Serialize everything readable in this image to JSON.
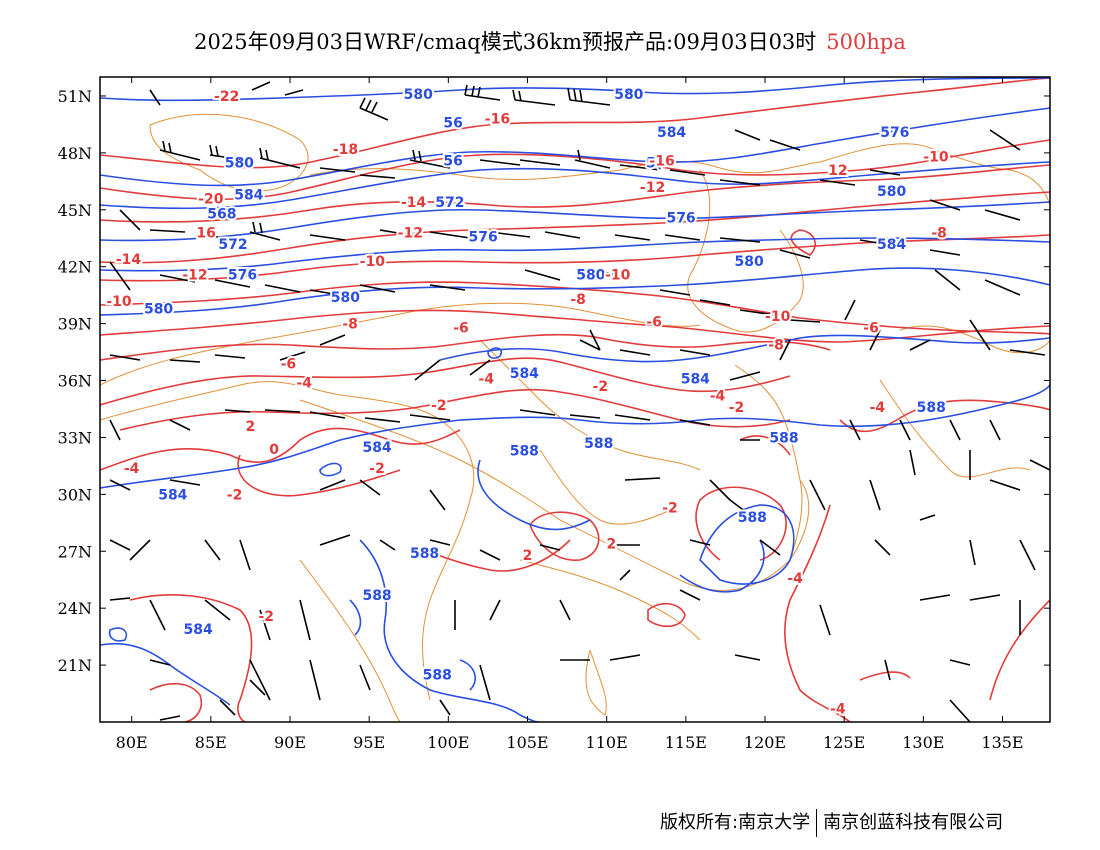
{
  "title": {
    "text": "2025年09月03日WRF/cmaq模式36km预报产品:09月03日03时",
    "level": "500hpa"
  },
  "map": {
    "lon_range": [
      78,
      138
    ],
    "lat_range": [
      18,
      52
    ],
    "lat_ticks": [
      "51N",
      "48N",
      "45N",
      "42N",
      "39N",
      "36N",
      "33N",
      "30N",
      "27N",
      "24N",
      "21N"
    ],
    "lat_values": [
      51,
      48,
      45,
      42,
      39,
      36,
      33,
      30,
      27,
      24,
      21
    ],
    "lon_ticks": [
      "80E",
      "85E",
      "90E",
      "95E",
      "100E",
      "105E",
      "110E",
      "115E",
      "120E",
      "125E",
      "130E",
      "135E"
    ],
    "lon_values": [
      80,
      85,
      90,
      95,
      100,
      105,
      110,
      115,
      120,
      125,
      130,
      135
    ],
    "colors": {
      "height_contour": "#2a4fe0",
      "temperature_contour": "#e23b3b",
      "boundary": "#e0913a",
      "wind_barb": "#000000"
    },
    "height_labels": [
      {
        "text": "580",
        "lon": 98.1,
        "lat": 51.1
      },
      {
        "text": "580",
        "lon": 111.4,
        "lat": 51.1
      },
      {
        "text": "56",
        "lon": 100.3,
        "lat": 49.6
      },
      {
        "text": "584",
        "lon": 114.1,
        "lat": 49.1
      },
      {
        "text": "576",
        "lon": 128.2,
        "lat": 49.1
      },
      {
        "text": "580",
        "lon": 86.8,
        "lat": 47.5
      },
      {
        "text": "56",
        "lon": 100.3,
        "lat": 47.6
      },
      {
        "text": "5(",
        "lon": 113.0,
        "lat": 47.5
      },
      {
        "text": "584",
        "lon": 87.4,
        "lat": 45.8
      },
      {
        "text": "572",
        "lon": 100.1,
        "lat": 45.4
      },
      {
        "text": "580",
        "lon": 128.0,
        "lat": 46.0
      },
      {
        "text": "568",
        "lon": 85.7,
        "lat": 44.8
      },
      {
        "text": "576",
        "lon": 114.7,
        "lat": 44.6
      },
      {
        "text": "572",
        "lon": 86.4,
        "lat": 43.2
      },
      {
        "text": "576",
        "lon": 102.2,
        "lat": 43.6
      },
      {
        "text": "584",
        "lon": 128.0,
        "lat": 43.2
      },
      {
        "text": "576",
        "lon": 87.0,
        "lat": 41.6
      },
      {
        "text": "580",
        "lon": 109.0,
        "lat": 41.6
      },
      {
        "text": "580",
        "lon": 119.0,
        "lat": 42.3
      },
      {
        "text": "580",
        "lon": 93.5,
        "lat": 40.4
      },
      {
        "text": "580",
        "lon": 81.7,
        "lat": 39.8
      },
      {
        "text": "584",
        "lon": 104.8,
        "lat": 36.4
      },
      {
        "text": "584",
        "lon": 115.6,
        "lat": 36.1
      },
      {
        "text": "588",
        "lon": 130.5,
        "lat": 34.6
      },
      {
        "text": "588",
        "lon": 121.2,
        "lat": 33.0
      },
      {
        "text": "588",
        "lon": 109.5,
        "lat": 32.7
      },
      {
        "text": "584",
        "lon": 95.5,
        "lat": 32.5
      },
      {
        "text": "588",
        "lon": 104.8,
        "lat": 32.3
      },
      {
        "text": "584",
        "lon": 82.6,
        "lat": 30.0
      },
      {
        "text": "588",
        "lon": 119.2,
        "lat": 28.8
      },
      {
        "text": "588",
        "lon": 98.5,
        "lat": 26.9
      },
      {
        "text": "588",
        "lon": 95.5,
        "lat": 24.7
      },
      {
        "text": "584",
        "lon": 84.2,
        "lat": 22.9
      },
      {
        "text": "588",
        "lon": 99.3,
        "lat": 20.5
      }
    ],
    "temp_labels": [
      {
        "text": "-22",
        "lon": 86.0,
        "lat": 51.0
      },
      {
        "text": "-16",
        "lon": 103.1,
        "lat": 49.8
      },
      {
        "text": "-18",
        "lon": 93.5,
        "lat": 48.2
      },
      {
        "text": "-16",
        "lon": 113.5,
        "lat": 47.6
      },
      {
        "text": "-10",
        "lon": 130.8,
        "lat": 47.8
      },
      {
        "text": "12",
        "lon": 124.6,
        "lat": 47.1
      },
      {
        "text": "-12",
        "lon": 112.9,
        "lat": 46.2
      },
      {
        "text": "-20",
        "lon": 85.0,
        "lat": 45.6
      },
      {
        "text": "-14",
        "lon": 97.8,
        "lat": 45.4
      },
      {
        "text": "16",
        "lon": 84.7,
        "lat": 43.8
      },
      {
        "text": "-12",
        "lon": 97.6,
        "lat": 43.8
      },
      {
        "text": "-8",
        "lon": 131.0,
        "lat": 43.8
      },
      {
        "text": "-14",
        "lon": 79.8,
        "lat": 42.4
      },
      {
        "text": "-10",
        "lon": 95.2,
        "lat": 42.3
      },
      {
        "text": "-12",
        "lon": 84.0,
        "lat": 41.6
      },
      {
        "text": "-10",
        "lon": 110.7,
        "lat": 41.6
      },
      {
        "text": "-10",
        "lon": 79.2,
        "lat": 40.2
      },
      {
        "text": "-8",
        "lon": 108.2,
        "lat": 40.3
      },
      {
        "text": "-10",
        "lon": 120.8,
        "lat": 39.4
      },
      {
        "text": "-8",
        "lon": 93.8,
        "lat": 39.0
      },
      {
        "text": "-6",
        "lon": 100.8,
        "lat": 38.8
      },
      {
        "text": "-6",
        "lon": 113.0,
        "lat": 39.1
      },
      {
        "text": "-6",
        "lon": 126.7,
        "lat": 38.8
      },
      {
        "text": "-8",
        "lon": 120.7,
        "lat": 37.9
      },
      {
        "text": "-6",
        "lon": 89.9,
        "lat": 36.9
      },
      {
        "text": "-4",
        "lon": 102.4,
        "lat": 36.1
      },
      {
        "text": "-4",
        "lon": 90.9,
        "lat": 35.9
      },
      {
        "text": "-2",
        "lon": 109.6,
        "lat": 35.7
      },
      {
        "text": "-4",
        "lon": 117.0,
        "lat": 35.2
      },
      {
        "text": "-2",
        "lon": 99.4,
        "lat": 34.7
      },
      {
        "text": "-2",
        "lon": 118.2,
        "lat": 34.6
      },
      {
        "text": "-4",
        "lon": 127.1,
        "lat": 34.6
      },
      {
        "text": "2",
        "lon": 87.5,
        "lat": 33.6
      },
      {
        "text": "0",
        "lon": 89.0,
        "lat": 32.4
      },
      {
        "text": "-2",
        "lon": 95.5,
        "lat": 31.4
      },
      {
        "text": "-4",
        "lon": 80.0,
        "lat": 31.4
      },
      {
        "text": "-2",
        "lon": 86.5,
        "lat": 30.0
      },
      {
        "text": "-2",
        "lon": 114.0,
        "lat": 29.3
      },
      {
        "text": "2",
        "lon": 110.3,
        "lat": 27.4
      },
      {
        "text": "2",
        "lon": 105.0,
        "lat": 26.8
      },
      {
        "text": "-4",
        "lon": 121.9,
        "lat": 25.6
      },
      {
        "text": "-2",
        "lon": 88.5,
        "lat": 23.6
      },
      {
        "text": "-4",
        "lon": 124.6,
        "lat": 18.7
      }
    ]
  },
  "footer": {
    "left": "版权所有:南京大学",
    "right": "南京创蓝科技有限公司"
  }
}
